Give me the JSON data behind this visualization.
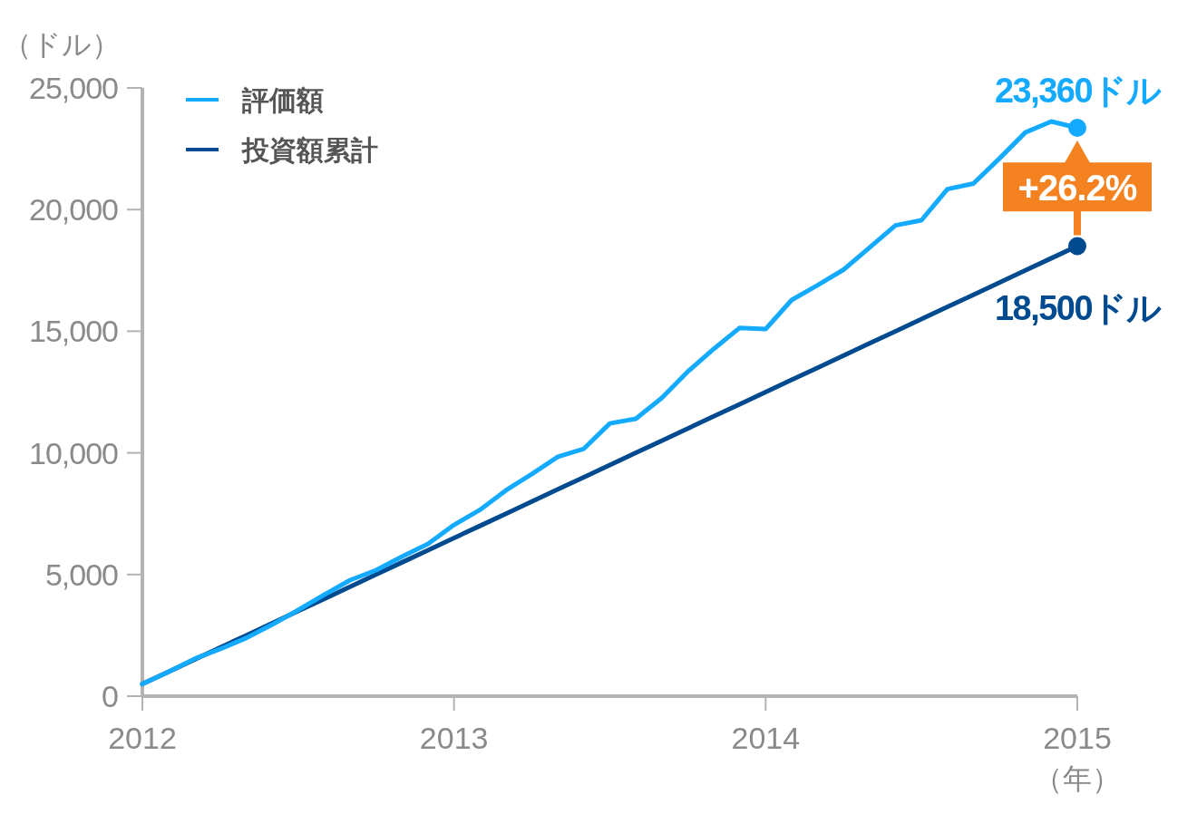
{
  "chart_data": {
    "type": "line",
    "ylabel": "（ドル）",
    "xlabel": "（年）",
    "x": [
      "2012-01",
      "2012-02",
      "2012-03",
      "2012-04",
      "2012-05",
      "2012-06",
      "2012-07",
      "2012-08",
      "2012-09",
      "2012-10",
      "2012-11",
      "2012-12",
      "2013-01",
      "2013-02",
      "2013-03",
      "2013-04",
      "2013-05",
      "2013-06",
      "2013-07",
      "2013-08",
      "2013-09",
      "2013-10",
      "2013-11",
      "2013-12",
      "2014-01",
      "2014-02",
      "2014-03",
      "2014-04",
      "2014-05",
      "2014-06",
      "2014-07",
      "2014-08",
      "2014-09",
      "2014-10",
      "2014-11",
      "2014-12",
      "2015-01"
    ],
    "series": [
      {
        "name": "評価額",
        "color": "#14aaff",
        "values": [
          500,
          1000,
          1530,
          1940,
          2390,
          2940,
          3540,
          4170,
          4770,
          5180,
          5740,
          6260,
          7040,
          7660,
          8460,
          9130,
          9840,
          10170,
          11210,
          11400,
          12260,
          13340,
          14270,
          15140,
          15090,
          16280,
          16890,
          17530,
          18440,
          19350,
          19560,
          20840,
          21070,
          22100,
          23170,
          23620,
          23360
        ]
      },
      {
        "name": "投資額累計",
        "color": "#004a8f",
        "values": [
          500,
          1000,
          1500,
          2000,
          2500,
          3000,
          3500,
          4000,
          4500,
          5000,
          5500,
          6000,
          6500,
          7000,
          7500,
          8000,
          8500,
          9000,
          9500,
          10000,
          10500,
          11000,
          11500,
          12000,
          12500,
          13000,
          13500,
          14000,
          14500,
          15000,
          15500,
          16000,
          16500,
          17000,
          17500,
          18000,
          18500
        ]
      }
    ],
    "xlim": [
      "2012-01",
      "2015-01"
    ],
    "xticks": [
      "2012",
      "2013",
      "2014",
      "2015"
    ],
    "ylim": [
      0,
      25000
    ],
    "yticks": [
      0,
      {
        "value": 5000,
        "label": "5,000"
      },
      {
        "value": 10000,
        "label": "10,000"
      },
      {
        "value": 15000,
        "label": "15,000"
      },
      {
        "value": 20000,
        "label": "20,000"
      },
      {
        "value": 25000,
        "label": "25,000"
      }
    ],
    "annotations": [
      {
        "text": "23,360ドル",
        "x": "2015-01",
        "y": 23360
      },
      {
        "text": "18,500ドル",
        "x": "2015-01",
        "y": 18500
      },
      "+26.2%"
    ],
    "legend": "top left",
    "grid": false,
    "line_style": "solid"
  }
}
